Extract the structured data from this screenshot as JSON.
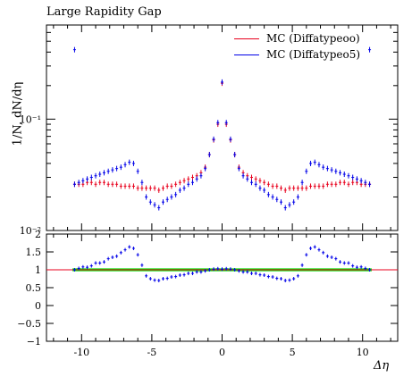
{
  "chart_data": [
    {
      "type": "scatter",
      "title": "Large Rapidity Gap",
      "ylabel": "1/N, dN/dη",
      "xlabel": "Δη",
      "xlim": [
        -12.5,
        12.5
      ],
      "ylim": [
        0.01,
        0.7
      ],
      "yscale": "log",
      "yticks": [
        0.01,
        0.1
      ],
      "ytick_labels": [
        "10⁻²",
        "10⁻¹"
      ],
      "legend": "top-right",
      "series": [
        {
          "name": "MC (Diffatypeoo)",
          "color": "#e8001c",
          "points": [
            [
              -10.5,
              0.026
            ],
            [
              -10.2,
              0.026
            ],
            [
              -9.9,
              0.026
            ],
            [
              -9.6,
              0.027
            ],
            [
              -9.3,
              0.027
            ],
            [
              -9.0,
              0.026
            ],
            [
              -8.7,
              0.027
            ],
            [
              -8.4,
              0.027
            ],
            [
              -8.1,
              0.026
            ],
            [
              -7.8,
              0.026
            ],
            [
              -7.5,
              0.026
            ],
            [
              -7.2,
              0.025
            ],
            [
              -6.9,
              0.025
            ],
            [
              -6.6,
              0.025
            ],
            [
              -6.3,
              0.025
            ],
            [
              -6.0,
              0.024
            ],
            [
              -5.7,
              0.024
            ],
            [
              -5.4,
              0.024
            ],
            [
              -5.1,
              0.024
            ],
            [
              -4.8,
              0.024
            ],
            [
              -4.5,
              0.023
            ],
            [
              -4.2,
              0.024
            ],
            [
              -3.9,
              0.025
            ],
            [
              -3.6,
              0.025
            ],
            [
              -3.3,
              0.026
            ],
            [
              -3.0,
              0.027
            ],
            [
              -2.7,
              0.028
            ],
            [
              -2.4,
              0.029
            ],
            [
              -2.1,
              0.03
            ],
            [
              -1.8,
              0.031
            ],
            [
              -1.5,
              0.033
            ],
            [
              -1.2,
              0.037
            ],
            [
              -0.9,
              0.048
            ],
            [
              -0.6,
              0.065
            ],
            [
              -0.3,
              0.09
            ],
            [
              0.0,
              0.21
            ],
            [
              0.3,
              0.09
            ],
            [
              0.6,
              0.065
            ],
            [
              0.9,
              0.048
            ],
            [
              1.2,
              0.037
            ],
            [
              1.5,
              0.033
            ],
            [
              1.8,
              0.031
            ],
            [
              2.1,
              0.03
            ],
            [
              2.4,
              0.029
            ],
            [
              2.7,
              0.028
            ],
            [
              3.0,
              0.027
            ],
            [
              3.3,
              0.026
            ],
            [
              3.6,
              0.025
            ],
            [
              3.9,
              0.025
            ],
            [
              4.2,
              0.024
            ],
            [
              4.5,
              0.023
            ],
            [
              4.8,
              0.024
            ],
            [
              5.1,
              0.024
            ],
            [
              5.4,
              0.024
            ],
            [
              5.7,
              0.024
            ],
            [
              6.0,
              0.024
            ],
            [
              6.3,
              0.025
            ],
            [
              6.6,
              0.025
            ],
            [
              6.9,
              0.025
            ],
            [
              7.2,
              0.025
            ],
            [
              7.5,
              0.026
            ],
            [
              7.8,
              0.026
            ],
            [
              8.1,
              0.026
            ],
            [
              8.4,
              0.027
            ],
            [
              8.7,
              0.027
            ],
            [
              9.0,
              0.026
            ],
            [
              9.3,
              0.027
            ],
            [
              9.6,
              0.027
            ],
            [
              9.9,
              0.026
            ],
            [
              10.2,
              0.026
            ],
            [
              10.5,
              0.026
            ]
          ]
        },
        {
          "name": "MC (Diffatypeo5)",
          "color": "#0000e8",
          "points": [
            [
              -10.5,
              0.026
            ],
            [
              -10.2,
              0.027
            ],
            [
              -9.9,
              0.028
            ],
            [
              -9.6,
              0.029
            ],
            [
              -9.3,
              0.03
            ],
            [
              -9.0,
              0.031
            ],
            [
              -8.7,
              0.032
            ],
            [
              -8.4,
              0.033
            ],
            [
              -8.1,
              0.034
            ],
            [
              -7.8,
              0.035
            ],
            [
              -7.5,
              0.036
            ],
            [
              -7.2,
              0.037
            ],
            [
              -6.9,
              0.039
            ],
            [
              -6.6,
              0.041
            ],
            [
              -6.3,
              0.04
            ],
            [
              -6.0,
              0.034
            ],
            [
              -5.7,
              0.027
            ],
            [
              -5.4,
              0.02
            ],
            [
              -5.1,
              0.018
            ],
            [
              -4.8,
              0.017
            ],
            [
              -4.5,
              0.016
            ],
            [
              -4.2,
              0.018
            ],
            [
              -3.9,
              0.019
            ],
            [
              -3.6,
              0.02
            ],
            [
              -3.3,
              0.021
            ],
            [
              -3.0,
              0.023
            ],
            [
              -2.7,
              0.024
            ],
            [
              -2.4,
              0.026
            ],
            [
              -2.1,
              0.027
            ],
            [
              -1.8,
              0.029
            ],
            [
              -1.5,
              0.031
            ],
            [
              -1.2,
              0.036
            ],
            [
              -0.9,
              0.048
            ],
            [
              -0.6,
              0.066
            ],
            [
              -0.3,
              0.093
            ],
            [
              0.0,
              0.215
            ],
            [
              0.3,
              0.093
            ],
            [
              0.6,
              0.066
            ],
            [
              0.9,
              0.048
            ],
            [
              1.2,
              0.036
            ],
            [
              1.5,
              0.031
            ],
            [
              1.8,
              0.029
            ],
            [
              2.1,
              0.027
            ],
            [
              2.4,
              0.026
            ],
            [
              2.7,
              0.024
            ],
            [
              3.0,
              0.023
            ],
            [
              3.3,
              0.021
            ],
            [
              3.6,
              0.02
            ],
            [
              3.9,
              0.019
            ],
            [
              4.2,
              0.018
            ],
            [
              4.5,
              0.016
            ],
            [
              4.8,
              0.017
            ],
            [
              5.1,
              0.018
            ],
            [
              5.4,
              0.02
            ],
            [
              5.7,
              0.027
            ],
            [
              6.0,
              0.034
            ],
            [
              6.3,
              0.04
            ],
            [
              6.6,
              0.041
            ],
            [
              6.9,
              0.039
            ],
            [
              7.2,
              0.037
            ],
            [
              7.5,
              0.036
            ],
            [
              7.8,
              0.035
            ],
            [
              8.1,
              0.034
            ],
            [
              8.4,
              0.033
            ],
            [
              8.7,
              0.032
            ],
            [
              9.0,
              0.031
            ],
            [
              9.3,
              0.03
            ],
            [
              9.6,
              0.029
            ],
            [
              9.9,
              0.028
            ],
            [
              10.2,
              0.027
            ],
            [
              10.5,
              0.026
            ],
            [
              -10.5,
              0.42
            ],
            [
              10.5,
              0.42
            ]
          ]
        }
      ]
    },
    {
      "type": "scatter",
      "xlabel": "Δη",
      "xlim": [
        -12.5,
        12.5
      ],
      "ylim": [
        -1,
        2
      ],
      "xticks": [
        -10,
        -5,
        0,
        5,
        10
      ],
      "xtick_labels": [
        "-10",
        "-5",
        "0",
        "5",
        "10"
      ],
      "yticks": [
        -1,
        -0.5,
        0,
        0.5,
        1,
        1.5,
        2
      ],
      "ytick_labels": [
        "−1",
        "−0.5",
        "0",
        "0.5",
        "1",
        "1.5",
        "2"
      ],
      "reference_line": 1,
      "band_color": "#00e000",
      "series": [
        {
          "name": "MC (Diffatypeo5)",
          "color": "#0000e8",
          "ratio": [
            1.0,
            1.04,
            1.08,
            1.07,
            1.11,
            1.19,
            1.19,
            1.22,
            1.31,
            1.35,
            1.38,
            1.48,
            1.56,
            1.64,
            1.6,
            1.42,
            1.13,
            0.83,
            0.75,
            0.71,
            0.7,
            0.75,
            0.76,
            0.8,
            0.81,
            0.85,
            0.86,
            0.9,
            0.9,
            0.94,
            0.94,
            0.97,
            1.0,
            1.02,
            1.03,
            1.02,
            1.03,
            1.02,
            1.0,
            0.97,
            0.94,
            0.94,
            0.9,
            0.9,
            0.86,
            0.85,
            0.81,
            0.8,
            0.76,
            0.75,
            0.7,
            0.71,
            0.75,
            0.83,
            1.13,
            1.42,
            1.6,
            1.64,
            1.56,
            1.48,
            1.38,
            1.35,
            1.31,
            1.22,
            1.19,
            1.19,
            1.11,
            1.07,
            1.08,
            1.04,
            1.0
          ]
        }
      ]
    }
  ]
}
